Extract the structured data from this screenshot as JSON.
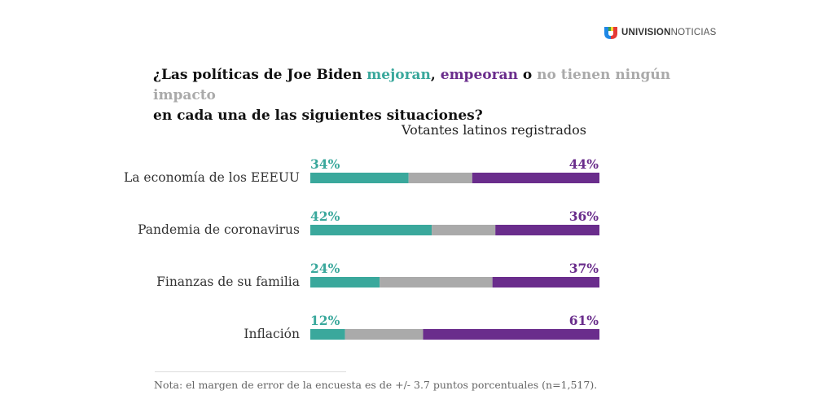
{
  "brand": {
    "name_strong": "UNIVISION",
    "name_light": "NOTICIAS"
  },
  "title": {
    "part1": "¿Las políticas de Joe Biden ",
    "better": "mejoran",
    "part2": ", ",
    "worse": "empeoran",
    "part3": " o ",
    "none": "no tienen ningún impacto",
    "line2": "en cada una de las siguientes situaciones?"
  },
  "subtitle": "Votantes latinos registrados",
  "note": "Nota: el margen de error de la encuesta es de +/- 3.7 puntos porcentuales  (n=1,517).",
  "colors": {
    "better": "#3aa89c",
    "none": "#aaaaaa",
    "worse": "#6a2d8c"
  },
  "chart_data": {
    "type": "bar",
    "orientation": "horizontal-stacked",
    "categories": [
      "La economía de los EEEUU",
      "Pandemia de coronavirus",
      "Finanzas de su familia",
      "Inflación"
    ],
    "series": [
      {
        "key": "better",
        "values": [
          34,
          42,
          24,
          12
        ]
      },
      {
        "key": "none",
        "values": [
          22,
          22,
          39,
          27
        ]
      },
      {
        "key": "worse",
        "values": [
          44,
          36,
          37,
          61
        ]
      }
    ],
    "labels": {
      "better": [
        "34%",
        "42%",
        "24%",
        "12%"
      ],
      "worse": [
        "44%",
        "36%",
        "37%",
        "61%"
      ]
    },
    "xlim": [
      0,
      100
    ],
    "grid": false,
    "legend": "none"
  }
}
